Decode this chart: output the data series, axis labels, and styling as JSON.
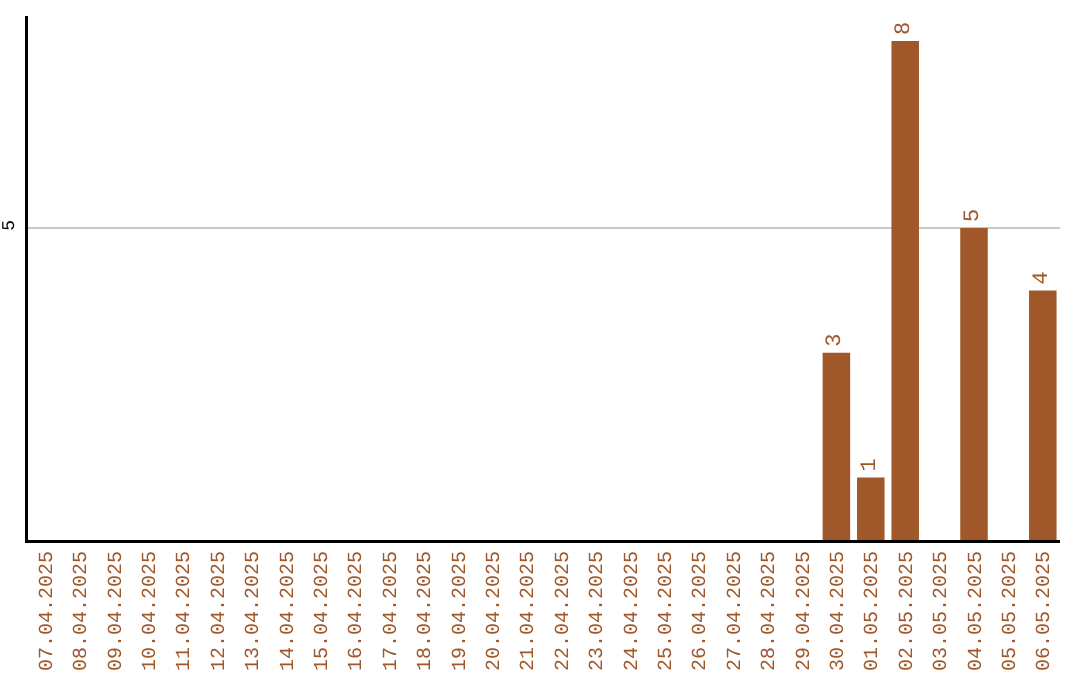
{
  "chart_data": {
    "type": "bar",
    "categories": [
      "07.04.2025",
      "08.04.2025",
      "09.04.2025",
      "10.04.2025",
      "11.04.2025",
      "12.04.2025",
      "13.04.2025",
      "14.04.2025",
      "15.04.2025",
      "16.04.2025",
      "17.04.2025",
      "18.04.2025",
      "19.04.2025",
      "20.04.2025",
      "21.04.2025",
      "22.04.2025",
      "23.04.2025",
      "24.04.2025",
      "25.04.2025",
      "26.04.2025",
      "27.04.2025",
      "28.04.2025",
      "29.04.2025",
      "30.04.2025",
      "01.05.2025",
      "02.05.2025",
      "03.05.2025",
      "04.05.2025",
      "05.05.2025",
      "06.05.2025"
    ],
    "values": [
      null,
      null,
      null,
      null,
      null,
      null,
      null,
      null,
      null,
      null,
      null,
      null,
      null,
      null,
      null,
      null,
      null,
      null,
      null,
      null,
      null,
      null,
      null,
      3,
      1,
      8,
      null,
      5,
      null,
      4
    ],
    "color": "#a0582a",
    "ylim": [
      0,
      8.4
    ],
    "yticks": [
      5
    ],
    "grid": "y",
    "data_labels": true
  }
}
